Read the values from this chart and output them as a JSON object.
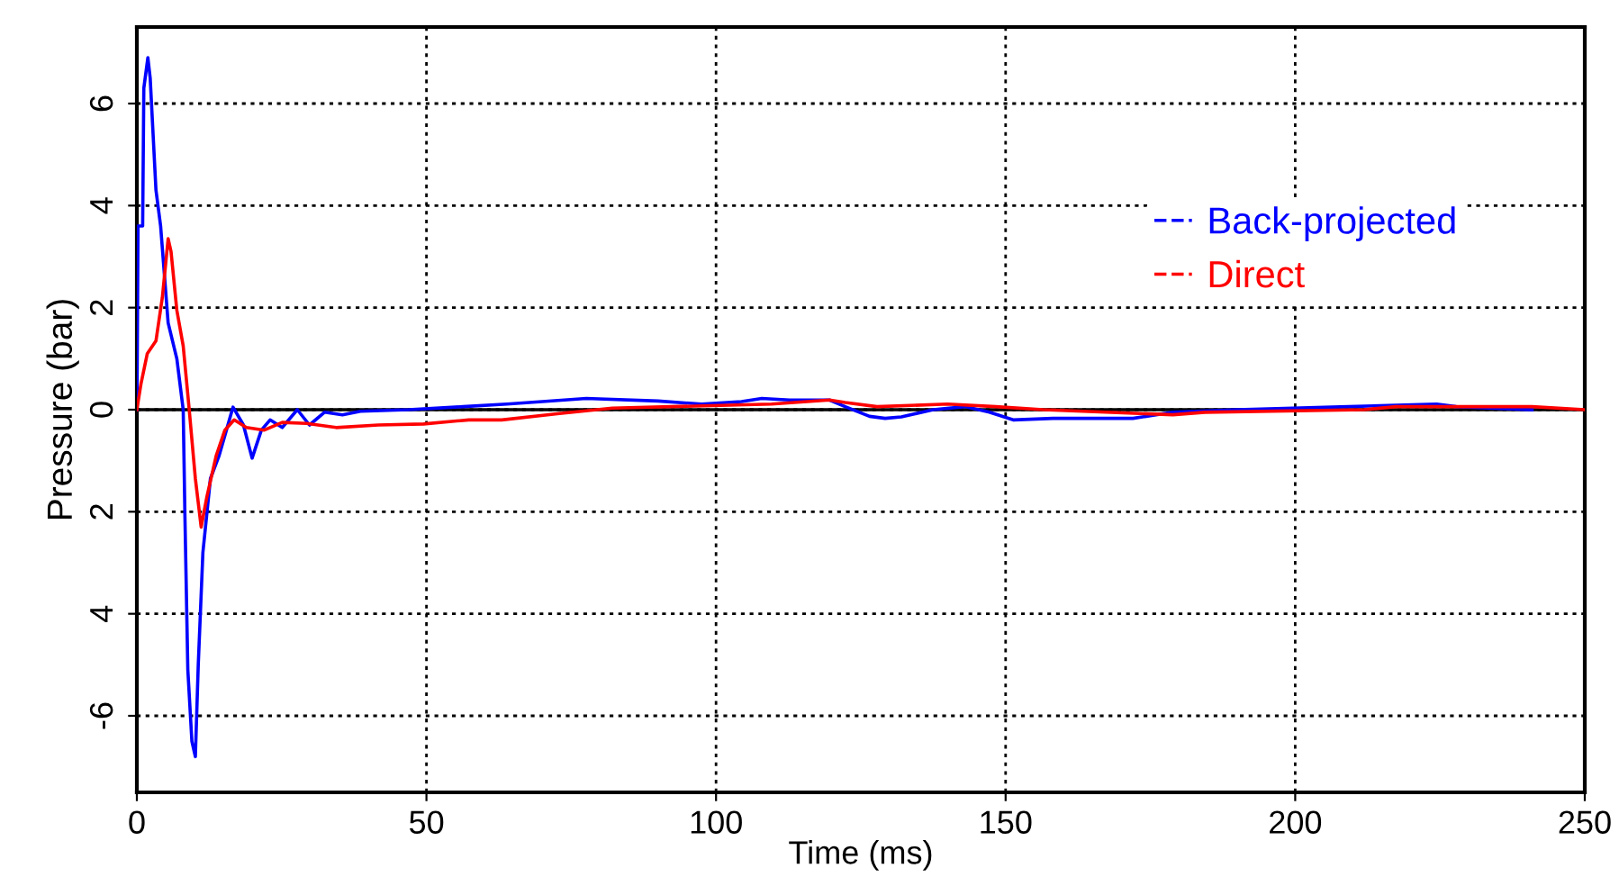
{
  "chart_data": {
    "type": "line",
    "xlabel": "Time (ms)",
    "ylabel": "Pressure (bar)",
    "xlim": [
      0,
      250
    ],
    "xticks": [
      0,
      50,
      100,
      150,
      200,
      250
    ],
    "ylim": [
      -7.5,
      7.5
    ],
    "yticks": [
      -6,
      {
        "value": -4,
        "label": "4"
      },
      {
        "value": -2,
        "label": "2"
      },
      0,
      2,
      4,
      6
    ],
    "grid": true,
    "legend": "top right",
    "line_style": "solid",
    "marker": "none",
    "ref_lines": [
      {
        "axis": "y",
        "value": 0,
        "color": "#000000"
      }
    ],
    "series": [
      {
        "name": "Back-projected",
        "color": "#0000ff",
        "x": [
          0,
          0.2,
          1.0,
          1.2,
          1.9,
          2.3,
          3.3,
          4.1,
          5.4,
          6.9,
          8.0,
          8.3,
          8.8,
          9.5,
          10.1,
          10.6,
          11.4,
          12.7,
          14.2,
          16.6,
          18.4,
          19.9,
          21.5,
          23.0,
          25.1,
          27.7,
          29.8,
          32.4,
          35.5,
          38.6,
          46.9,
          56.3,
          63.9,
          70,
          77.6,
          90,
          97.5,
          104.4,
          107.9,
          112.7,
          119.6,
          122.3,
          126.5,
          129.2,
          132,
          137.5,
          143,
          147.2,
          151.3,
          158.2,
          172,
          178.9,
          189.9,
          209.2,
          224.4,
          227.8,
          240.9
        ],
        "values": [
          0,
          3.6,
          3.6,
          6.3,
          6.9,
          6.5,
          4.3,
          3.6,
          1.7,
          1.0,
          0,
          -2.1,
          -5.1,
          -6.5,
          -6.8,
          -5.0,
          -2.8,
          -1.35,
          -0.9,
          0.05,
          -0.3,
          -0.95,
          -0.4,
          -0.2,
          -0.35,
          0,
          -0.3,
          -0.05,
          -0.1,
          -0.03,
          0,
          0.06,
          0.11,
          0.16,
          0.22,
          0.17,
          0.11,
          0.16,
          0.22,
          0.19,
          0.19,
          0.06,
          -0.13,
          -0.17,
          -0.14,
          0,
          0.06,
          -0.05,
          -0.2,
          -0.17,
          -0.17,
          -0.05,
          0,
          0.06,
          0.11,
          0.06,
          0
        ]
      },
      {
        "name": "Direct",
        "color": "#ff0000",
        "x": [
          0,
          0.7,
          1.8,
          3.3,
          4.4,
          5.4,
          5.9,
          6.9,
          8.0,
          9.0,
          10.1,
          11.1,
          12.1,
          13.7,
          15.2,
          16.8,
          18.9,
          22.0,
          25.1,
          29.3,
          34.4,
          41.7,
          49.5,
          57.3,
          63,
          72.6,
          82.1,
          109.6,
          119.6,
          122.3,
          127.8,
          140,
          148.3,
          156.5,
          178.9,
          184.4,
          211.9,
          217.4,
          240.9,
          250
        ],
        "values": [
          0,
          0.5,
          1.1,
          1.35,
          2.2,
          3.35,
          3.1,
          1.95,
          1.25,
          0.05,
          -1.35,
          -2.3,
          -1.7,
          -0.9,
          -0.4,
          -0.2,
          -0.35,
          -0.4,
          -0.25,
          -0.27,
          -0.35,
          -0.3,
          -0.28,
          -0.2,
          -0.2,
          -0.08,
          0.03,
          0.11,
          0.19,
          0.14,
          0.06,
          0.11,
          0.06,
          0,
          -0.1,
          -0.05,
          0,
          0.06,
          0.06,
          0
        ]
      }
    ]
  }
}
